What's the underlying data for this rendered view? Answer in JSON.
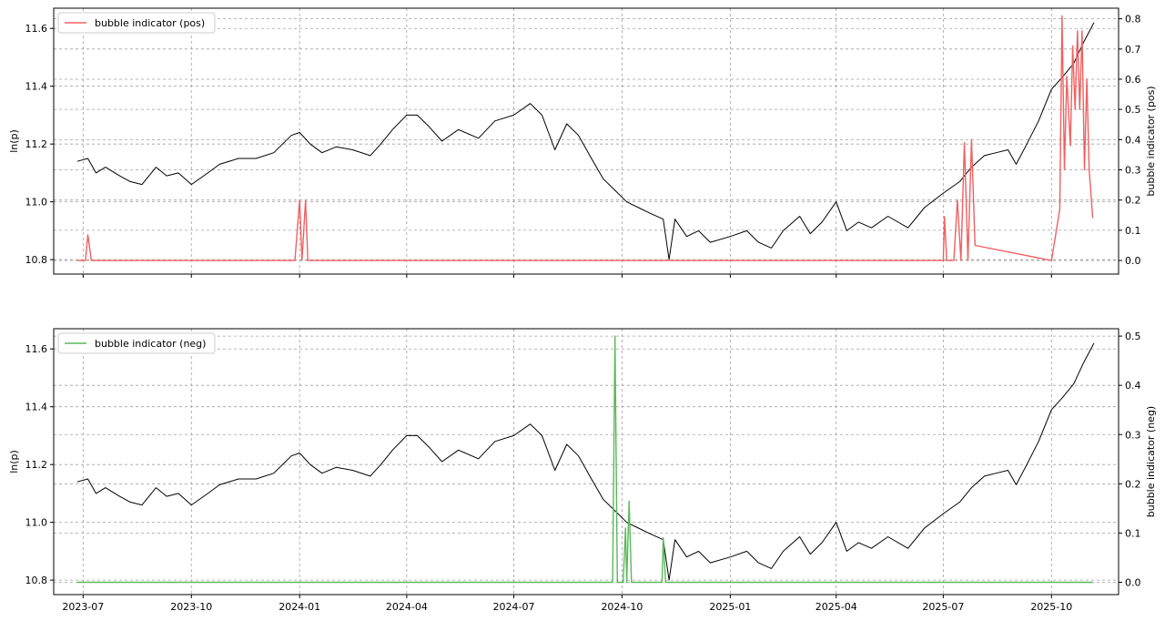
{
  "chart_data": [
    {
      "type": "line",
      "ylabel": "ln(p)",
      "y2label": "bubble indicator (pos)",
      "x_tick_labels": [
        "2023-07",
        "2023-10",
        "2024-01",
        "2024-04",
        "2024-07",
        "2024-10",
        "2025-01",
        "2025-04",
        "2025-07",
        "2025-10"
      ],
      "show_x_tick_labels": false,
      "ylim": [
        10.75,
        11.67
      ],
      "yticks": [
        10.8,
        11.0,
        11.2,
        11.4,
        11.6
      ],
      "y2lim": [
        -0.045,
        0.835
      ],
      "y2ticks": [
        0.0,
        0.1,
        0.2,
        0.3,
        0.4,
        0.5,
        0.6,
        0.7,
        0.8
      ],
      "xlim": [
        "2023-06-06",
        "2025-11-27"
      ],
      "grid": true,
      "legend": {
        "position": "top-left",
        "entries": [
          "bubble indicator (pos)"
        ]
      },
      "series": [
        {
          "axis": "left",
          "color": "#000000",
          "points": [
            [
              "2023-06-26",
              11.14
            ],
            [
              "2023-07-05",
              11.15
            ],
            [
              "2023-07-12",
              11.1
            ],
            [
              "2023-07-20",
              11.12
            ],
            [
              "2023-08-01",
              11.09
            ],
            [
              "2023-08-10",
              11.07
            ],
            [
              "2023-08-20",
              11.06
            ],
            [
              "2023-09-01",
              11.12
            ],
            [
              "2023-09-10",
              11.09
            ],
            [
              "2023-09-20",
              11.1
            ],
            [
              "2023-10-01",
              11.06
            ],
            [
              "2023-10-15",
              11.1
            ],
            [
              "2023-10-25",
              11.13
            ],
            [
              "2023-11-10",
              11.15
            ],
            [
              "2023-11-25",
              11.15
            ],
            [
              "2023-12-10",
              11.17
            ],
            [
              "2023-12-25",
              11.23
            ],
            [
              "2024-01-01",
              11.24
            ],
            [
              "2024-01-10",
              11.2
            ],
            [
              "2024-01-20",
              11.17
            ],
            [
              "2024-02-01",
              11.19
            ],
            [
              "2024-02-15",
              11.18
            ],
            [
              "2024-03-01",
              11.16
            ],
            [
              "2024-03-10",
              11.2
            ],
            [
              "2024-03-20",
              11.25
            ],
            [
              "2024-04-01",
              11.3
            ],
            [
              "2024-04-10",
              11.3
            ],
            [
              "2024-04-20",
              11.26
            ],
            [
              "2024-05-01",
              11.21
            ],
            [
              "2024-05-15",
              11.25
            ],
            [
              "2024-06-01",
              11.22
            ],
            [
              "2024-06-15",
              11.28
            ],
            [
              "2024-07-01",
              11.3
            ],
            [
              "2024-07-15",
              11.34
            ],
            [
              "2024-07-25",
              11.3
            ],
            [
              "2024-08-05",
              11.18
            ],
            [
              "2024-08-15",
              11.27
            ],
            [
              "2024-08-25",
              11.23
            ],
            [
              "2024-09-05",
              11.15
            ],
            [
              "2024-09-15",
              11.08
            ],
            [
              "2024-09-25",
              11.04
            ],
            [
              "2024-10-05",
              11.0
            ],
            [
              "2024-10-15",
              10.98
            ],
            [
              "2024-10-25",
              10.96
            ],
            [
              "2024-11-05",
              10.94
            ],
            [
              "2024-11-10",
              10.8
            ],
            [
              "2024-11-15",
              10.94
            ],
            [
              "2024-11-25",
              10.88
            ],
            [
              "2024-12-05",
              10.9
            ],
            [
              "2024-12-15",
              10.86
            ],
            [
              "2025-01-01",
              10.88
            ],
            [
              "2025-01-15",
              10.9
            ],
            [
              "2025-01-25",
              10.86
            ],
            [
              "2025-02-05",
              10.84
            ],
            [
              "2025-02-15",
              10.9
            ],
            [
              "2025-03-01",
              10.95
            ],
            [
              "2025-03-10",
              10.89
            ],
            [
              "2025-03-20",
              10.93
            ],
            [
              "2025-04-01",
              11.0
            ],
            [
              "2025-04-10",
              10.9
            ],
            [
              "2025-04-20",
              10.93
            ],
            [
              "2025-05-01",
              10.91
            ],
            [
              "2025-05-15",
              10.95
            ],
            [
              "2025-06-01",
              10.91
            ],
            [
              "2025-06-15",
              10.98
            ],
            [
              "2025-07-01",
              11.03
            ],
            [
              "2025-07-15",
              11.07
            ],
            [
              "2025-07-25",
              11.12
            ],
            [
              "2025-08-05",
              11.16
            ],
            [
              "2025-08-15",
              11.17
            ],
            [
              "2025-08-25",
              11.18
            ],
            [
              "2025-09-01",
              11.13
            ],
            [
              "2025-09-10",
              11.2
            ],
            [
              "2025-09-20",
              11.28
            ],
            [
              "2025-10-01",
              11.39
            ],
            [
              "2025-10-10",
              11.43
            ],
            [
              "2025-10-20",
              11.48
            ],
            [
              "2025-10-28",
              11.55
            ],
            [
              "2025-11-06",
              11.62
            ]
          ]
        },
        {
          "name": "bubble indicator (pos)",
          "axis": "right",
          "color": "#f06060",
          "points": [
            [
              "2023-06-26",
              0.0
            ],
            [
              "2023-07-03",
              0.0
            ],
            [
              "2023-07-05",
              0.085
            ],
            [
              "2023-07-08",
              0.0
            ],
            [
              "2023-12-28",
              0.0
            ],
            [
              "2024-01-01",
              0.2
            ],
            [
              "2024-01-03",
              0.0
            ],
            [
              "2024-01-06",
              0.2
            ],
            [
              "2024-01-08",
              0.0
            ],
            [
              "2025-07-01",
              0.0
            ],
            [
              "2025-07-02",
              0.145
            ],
            [
              "2025-07-04",
              0.0
            ],
            [
              "2025-07-10",
              0.0
            ],
            [
              "2025-07-13",
              0.2
            ],
            [
              "2025-07-16",
              0.0
            ],
            [
              "2025-07-19",
              0.39
            ],
            [
              "2025-07-22",
              0.0
            ],
            [
              "2025-07-25",
              0.4
            ],
            [
              "2025-07-28",
              0.05
            ],
            [
              "2025-10-01",
              0.0
            ],
            [
              "2025-10-08",
              0.17
            ],
            [
              "2025-10-10",
              0.81
            ],
            [
              "2025-10-12",
              0.3
            ],
            [
              "2025-10-14",
              0.61
            ],
            [
              "2025-10-17",
              0.38
            ],
            [
              "2025-10-19",
              0.71
            ],
            [
              "2025-10-21",
              0.5
            ],
            [
              "2025-10-23",
              0.76
            ],
            [
              "2025-10-25",
              0.5
            ],
            [
              "2025-10-27",
              0.76
            ],
            [
              "2025-10-29",
              0.3
            ],
            [
              "2025-10-31",
              0.6
            ],
            [
              "2025-11-02",
              0.3
            ],
            [
              "2025-11-05",
              0.14
            ]
          ]
        }
      ]
    },
    {
      "type": "line",
      "ylabel": "ln(p)",
      "y2label": "bubble indicator (neg)",
      "x_tick_labels": [
        "2023-07",
        "2023-10",
        "2024-01",
        "2024-04",
        "2024-07",
        "2024-10",
        "2025-01",
        "2025-04",
        "2025-07",
        "2025-10"
      ],
      "show_x_tick_labels": true,
      "ylim": [
        10.75,
        11.67
      ],
      "yticks": [
        10.8,
        11.0,
        11.2,
        11.4,
        11.6
      ],
      "y2lim": [
        -0.025,
        0.515
      ],
      "y2ticks": [
        0.0,
        0.1,
        0.2,
        0.3,
        0.4,
        0.5
      ],
      "xlim": [
        "2023-06-06",
        "2025-11-27"
      ],
      "grid": true,
      "legend": {
        "position": "top-left",
        "entries": [
          "bubble indicator (neg)"
        ]
      },
      "series": [
        {
          "axis": "left",
          "color": "#000000",
          "points": [
            [
              "2023-06-26",
              11.14
            ],
            [
              "2023-07-05",
              11.15
            ],
            [
              "2023-07-12",
              11.1
            ],
            [
              "2023-07-20",
              11.12
            ],
            [
              "2023-08-01",
              11.09
            ],
            [
              "2023-08-10",
              11.07
            ],
            [
              "2023-08-20",
              11.06
            ],
            [
              "2023-09-01",
              11.12
            ],
            [
              "2023-09-10",
              11.09
            ],
            [
              "2023-09-20",
              11.1
            ],
            [
              "2023-10-01",
              11.06
            ],
            [
              "2023-10-15",
              11.1
            ],
            [
              "2023-10-25",
              11.13
            ],
            [
              "2023-11-10",
              11.15
            ],
            [
              "2023-11-25",
              11.15
            ],
            [
              "2023-12-10",
              11.17
            ],
            [
              "2023-12-25",
              11.23
            ],
            [
              "2024-01-01",
              11.24
            ],
            [
              "2024-01-10",
              11.2
            ],
            [
              "2024-01-20",
              11.17
            ],
            [
              "2024-02-01",
              11.19
            ],
            [
              "2024-02-15",
              11.18
            ],
            [
              "2024-03-01",
              11.16
            ],
            [
              "2024-03-10",
              11.2
            ],
            [
              "2024-03-20",
              11.25
            ],
            [
              "2024-04-01",
              11.3
            ],
            [
              "2024-04-10",
              11.3
            ],
            [
              "2024-04-20",
              11.26
            ],
            [
              "2024-05-01",
              11.21
            ],
            [
              "2024-05-15",
              11.25
            ],
            [
              "2024-06-01",
              11.22
            ],
            [
              "2024-06-15",
              11.28
            ],
            [
              "2024-07-01",
              11.3
            ],
            [
              "2024-07-15",
              11.34
            ],
            [
              "2024-07-25",
              11.3
            ],
            [
              "2024-08-05",
              11.18
            ],
            [
              "2024-08-15",
              11.27
            ],
            [
              "2024-08-25",
              11.23
            ],
            [
              "2024-09-05",
              11.15
            ],
            [
              "2024-09-15",
              11.08
            ],
            [
              "2024-09-25",
              11.04
            ],
            [
              "2024-10-05",
              11.0
            ],
            [
              "2024-10-15",
              10.98
            ],
            [
              "2024-10-25",
              10.96
            ],
            [
              "2024-11-05",
              10.94
            ],
            [
              "2024-11-10",
              10.8
            ],
            [
              "2024-11-15",
              10.94
            ],
            [
              "2024-11-25",
              10.88
            ],
            [
              "2024-12-05",
              10.9
            ],
            [
              "2024-12-15",
              10.86
            ],
            [
              "2025-01-01",
              10.88
            ],
            [
              "2025-01-15",
              10.9
            ],
            [
              "2025-01-25",
              10.86
            ],
            [
              "2025-02-05",
              10.84
            ],
            [
              "2025-02-15",
              10.9
            ],
            [
              "2025-03-01",
              10.95
            ],
            [
              "2025-03-10",
              10.89
            ],
            [
              "2025-03-20",
              10.93
            ],
            [
              "2025-04-01",
              11.0
            ],
            [
              "2025-04-10",
              10.9
            ],
            [
              "2025-04-20",
              10.93
            ],
            [
              "2025-05-01",
              10.91
            ],
            [
              "2025-05-15",
              10.95
            ],
            [
              "2025-06-01",
              10.91
            ],
            [
              "2025-06-15",
              10.98
            ],
            [
              "2025-07-01",
              11.03
            ],
            [
              "2025-07-15",
              11.07
            ],
            [
              "2025-07-25",
              11.12
            ],
            [
              "2025-08-05",
              11.16
            ],
            [
              "2025-08-15",
              11.17
            ],
            [
              "2025-08-25",
              11.18
            ],
            [
              "2025-09-01",
              11.13
            ],
            [
              "2025-09-10",
              11.2
            ],
            [
              "2025-09-20",
              11.28
            ],
            [
              "2025-10-01",
              11.39
            ],
            [
              "2025-10-10",
              11.43
            ],
            [
              "2025-10-20",
              11.48
            ],
            [
              "2025-10-28",
              11.55
            ],
            [
              "2025-11-06",
              11.62
            ]
          ]
        },
        {
          "name": "bubble indicator (neg)",
          "axis": "right",
          "color": "#5cb85c",
          "points": [
            [
              "2023-06-26",
              0.0
            ],
            [
              "2024-09-23",
              0.0
            ],
            [
              "2024-09-25",
              0.5
            ],
            [
              "2024-09-27",
              0.0
            ],
            [
              "2024-10-02",
              0.0
            ],
            [
              "2024-10-04",
              0.11
            ],
            [
              "2024-10-05",
              0.0
            ],
            [
              "2024-10-07",
              0.165
            ],
            [
              "2024-10-09",
              0.0
            ],
            [
              "2024-11-04",
              0.0
            ],
            [
              "2024-11-05",
              0.09
            ],
            [
              "2024-11-07",
              0.0
            ],
            [
              "2025-11-05",
              0.0
            ]
          ]
        }
      ]
    }
  ]
}
